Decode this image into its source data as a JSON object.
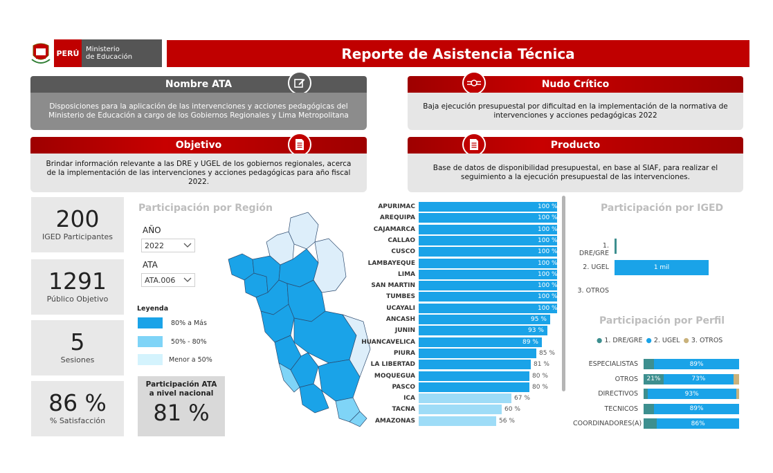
{
  "header": {
    "peru_label": "PERÚ",
    "ministry_line1": "Ministerio",
    "ministry_line2": "de Educación",
    "title": "Reporte de Asistencia Técnica"
  },
  "cards": {
    "nombre_ata": {
      "title": "Nombre ATA",
      "body": "Disposiciones para la aplicación de las intervenciones y acciones pedagógicas del Ministerio de Educación a cargo de los Gobiernos Regionales y Lima Metropolitana"
    },
    "nudo_critico": {
      "title": "Nudo Crítico",
      "body": "Baja ejecución presupuestal  por dificultad en la implementación de la normativa de intervenciones y acciones pedagógicas  2022"
    },
    "objetivo": {
      "title": "Objetivo",
      "body": "Brindar información relevante a las DRE y UGEL de los gobiernos regionales, acerca de la implementación de las intervenciones y acciones pedagógicas para año fiscal 2022."
    },
    "producto": {
      "title": "Producto",
      "body": "Base de datos de disponibilidad presupuestal,  en base al SIAF, para realizar el seguimiento a la ejecución presupuestal de las intervenciones."
    }
  },
  "kpis": {
    "iged": {
      "value": "200",
      "label": "IGED Participantes"
    },
    "publico": {
      "value": "1291",
      "label": "Público Objetivo"
    },
    "sesiones": {
      "value": "5",
      "label": "Sesiones"
    },
    "satisfaccion": {
      "value": "86 %",
      "label": "% Satisfacción"
    }
  },
  "region_section": {
    "title": "Participación por Región",
    "year_label": "AÑO",
    "year_value": "2022",
    "ata_label": "ATA",
    "ata_value": "ATA.006",
    "legend_title": "Leyenda",
    "legend": [
      {
        "label": "80% a Más",
        "color": "#1aa3e8"
      },
      {
        "label": "50% - 80%",
        "color": "#7fd4f7"
      },
      {
        "label": "Menor  a 50%",
        "color": "#d4f3fd"
      }
    ],
    "national_label_line1": "Participación ATA",
    "national_label_line2": "a nivel nacional",
    "national_value": "81 %"
  },
  "region_bars": [
    {
      "region": "APURIMAC",
      "value": 100,
      "label": "100 %"
    },
    {
      "region": "AREQUIPA",
      "value": 100,
      "label": "100 %"
    },
    {
      "region": "CAJAMARCA",
      "value": 100,
      "label": "100 %"
    },
    {
      "region": "CALLAO",
      "value": 100,
      "label": "100 %"
    },
    {
      "region": "CUSCO",
      "value": 100,
      "label": "100 %"
    },
    {
      "region": "LAMBAYEQUE",
      "value": 100,
      "label": "100 %"
    },
    {
      "region": "LIMA",
      "value": 100,
      "label": "100 %"
    },
    {
      "region": "SAN MARTIN",
      "value": 100,
      "label": "100 %"
    },
    {
      "region": "TUMBES",
      "value": 100,
      "label": "100 %"
    },
    {
      "region": "UCAYALI",
      "value": 100,
      "label": "100 %"
    },
    {
      "region": "ANCASH",
      "value": 95,
      "label": "95 %"
    },
    {
      "region": "JUNIN",
      "value": 93,
      "label": "93 %"
    },
    {
      "region": "HUANCAVELICA",
      "value": 89,
      "label": "89 %"
    },
    {
      "region": "PIURA",
      "value": 85,
      "label": "85 %"
    },
    {
      "region": "LA LIBERTAD",
      "value": 81,
      "label": "81 %"
    },
    {
      "region": "MOQUEGUA",
      "value": 80,
      "label": "80 %"
    },
    {
      "region": "PASCO",
      "value": 80,
      "label": "80 %"
    },
    {
      "region": "ICA",
      "value": 67,
      "label": "67 %"
    },
    {
      "region": "TACNA",
      "value": 60,
      "label": "60 %"
    },
    {
      "region": "AMAZONAS",
      "value": 56,
      "label": "56 %"
    }
  ],
  "iged_section": {
    "title": "Participación por IGED",
    "rows": [
      {
        "label": "1. DRE/GRE",
        "value": 22,
        "value_label": "",
        "color": "#3d8f8f"
      },
      {
        "label": "2. UGEL",
        "value": 1000,
        "value_label": "1 mil",
        "color": "#1aa3e8"
      },
      {
        "label": "3. OTROS",
        "value": 0,
        "value_label": "",
        "color": "#c9b27c"
      }
    ]
  },
  "perfil_section": {
    "title": "Participación por Perfil",
    "legend": [
      {
        "label": "1. DRE/GRE",
        "color": "#3d8f8f"
      },
      {
        "label": "2. UGEL",
        "color": "#1aa3e8"
      },
      {
        "label": "3. OTROS",
        "color": "#c9b27c"
      }
    ],
    "rows": [
      {
        "label": "ESPECIALISTAS",
        "dre": 11,
        "ugel": 89,
        "otros": 0,
        "dre_label": "",
        "ugel_label": "89%",
        "otros_label": ""
      },
      {
        "label": "OTROS",
        "dre": 21,
        "ugel": 73,
        "otros": 6,
        "dre_label": "21%",
        "ugel_label": "73%",
        "otros_label": ""
      },
      {
        "label": "DIRECTIVOS",
        "dre": 4,
        "ugel": 93,
        "otros": 3,
        "dre_label": "",
        "ugel_label": "93%",
        "otros_label": ""
      },
      {
        "label": "TECNICOS",
        "dre": 11,
        "ugel": 89,
        "otros": 0,
        "dre_label": "",
        "ugel_label": "89%",
        "otros_label": ""
      },
      {
        "label": "COORDINADORES(A)",
        "dre": 14,
        "ugel": 86,
        "otros": 0,
        "dre_label": "",
        "ugel_label": "86%",
        "otros_label": ""
      }
    ]
  },
  "colors": {
    "brand_red": "#c00000",
    "dark_grey": "#595959",
    "bar_high": "#1aa3e8",
    "bar_mid": "#7fd4f7",
    "bar_low": "#9edcf7"
  }
}
